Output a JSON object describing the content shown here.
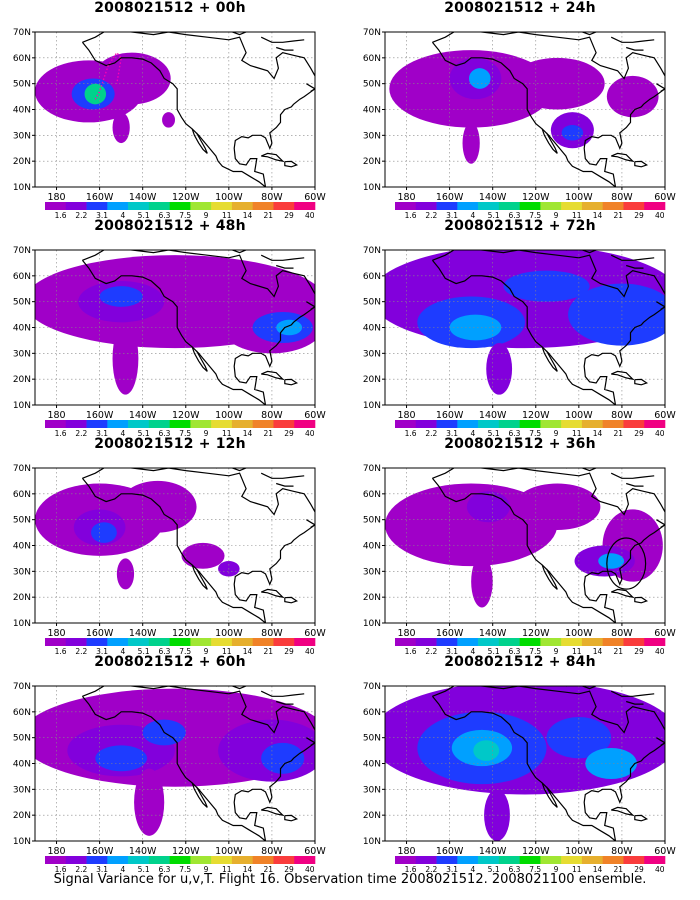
{
  "footer": "Signal Variance for u,v,T. Flight 16. Observation time 2008021512. 2008021100 ensemble.",
  "colors": {
    "levels": [
      "#a000c8",
      "#8200dc",
      "#1e3cff",
      "#00a0ff",
      "#00c8c8",
      "#00d28c",
      "#00dc00",
      "#a0e632",
      "#e6dc32",
      "#e6af2d",
      "#f08228",
      "#fa3c3c",
      "#f00082"
    ],
    "ocean": "#ffffff",
    "grid": "#888888",
    "coast": "#000000"
  },
  "chart_data": [
    {
      "type": "heatmap",
      "title": "2008021512 + 00h",
      "xlabel": "",
      "ylabel": "",
      "x_ticks": [
        "180",
        "160W",
        "140W",
        "120W",
        "100W",
        "80W",
        "60W"
      ],
      "y_ticks": [
        "10N",
        "20N",
        "30N",
        "40N",
        "50N",
        "60N",
        "70N"
      ],
      "xlim": [
        -190,
        -60
      ],
      "ylim": [
        10,
        70
      ],
      "colorbar": [
        "1.6",
        "2.2",
        "3.1",
        "4",
        "5.1",
        "6.3",
        "7.5",
        "9",
        "11",
        "14",
        "21",
        "29",
        "40"
      ],
      "fields": [
        {
          "lon": -165,
          "lat": 47,
          "rx": 25,
          "ry": 12,
          "level": 0
        },
        {
          "lon": -145,
          "lat": 52,
          "rx": 18,
          "ry": 10,
          "level": 0
        },
        {
          "lon": -163,
          "lat": 46,
          "rx": 10,
          "ry": 6,
          "level": 2
        },
        {
          "lon": -162,
          "lat": 46,
          "rx": 5,
          "ry": 4,
          "level": 5
        },
        {
          "lon": -150,
          "lat": 33,
          "rx": 4,
          "ry": 6,
          "level": 0
        },
        {
          "lon": -128,
          "lat": 36,
          "rx": 3,
          "ry": 3,
          "level": 0
        }
      ],
      "circle": null
    },
    {
      "type": "heatmap",
      "title": "2008021512 + 12h",
      "xlabel": "",
      "ylabel": "",
      "x_ticks": [
        "180",
        "160W",
        "140W",
        "120W",
        "100W",
        "80W",
        "60W"
      ],
      "y_ticks": [
        "10N",
        "20N",
        "30N",
        "40N",
        "50N",
        "60N",
        "70N"
      ],
      "xlim": [
        -190,
        -60
      ],
      "ylim": [
        10,
        70
      ],
      "colorbar": [
        "1.6",
        "2.2",
        "3.1",
        "4",
        "5.1",
        "6.3",
        "7.5",
        "9",
        "11",
        "14",
        "21",
        "29",
        "40"
      ],
      "fields": [
        {
          "lon": -160,
          "lat": 50,
          "rx": 30,
          "ry": 14,
          "level": 0
        },
        {
          "lon": -133,
          "lat": 55,
          "rx": 18,
          "ry": 10,
          "level": 0
        },
        {
          "lon": -160,
          "lat": 47,
          "rx": 12,
          "ry": 7,
          "level": 1
        },
        {
          "lon": -158,
          "lat": 45,
          "rx": 6,
          "ry": 4,
          "level": 2
        },
        {
          "lon": -148,
          "lat": 29,
          "rx": 4,
          "ry": 6,
          "level": 0
        },
        {
          "lon": -112,
          "lat": 36,
          "rx": 10,
          "ry": 5,
          "level": 0
        },
        {
          "lon": -100,
          "lat": 31,
          "rx": 5,
          "ry": 3,
          "level": 1
        }
      ],
      "circle": null
    },
    {
      "type": "heatmap",
      "title": "2008021512 + 24h",
      "xlabel": "",
      "ylabel": "",
      "x_ticks": [
        "180",
        "160W",
        "140W",
        "120W",
        "100W",
        "80W",
        "60W"
      ],
      "y_ticks": [
        "10N",
        "20N",
        "30N",
        "40N",
        "50N",
        "60N",
        "70N"
      ],
      "xlim": [
        -190,
        -60
      ],
      "ylim": [
        10,
        70
      ],
      "colorbar": [
        "1.6",
        "2.2",
        "3.1",
        "4",
        "5.1",
        "6.3",
        "7.5",
        "9",
        "11",
        "14",
        "21",
        "29",
        "40"
      ],
      "fields": [
        {
          "lon": -150,
          "lat": 48,
          "rx": 38,
          "ry": 15,
          "level": 0
        },
        {
          "lon": -110,
          "lat": 50,
          "rx": 22,
          "ry": 10,
          "level": 0
        },
        {
          "lon": -75,
          "lat": 45,
          "rx": 12,
          "ry": 8,
          "level": 0
        },
        {
          "lon": -148,
          "lat": 52,
          "rx": 12,
          "ry": 8,
          "level": 1
        },
        {
          "lon": -146,
          "lat": 52,
          "rx": 5,
          "ry": 4,
          "level": 3
        },
        {
          "lon": -150,
          "lat": 27,
          "rx": 4,
          "ry": 8,
          "level": 0
        },
        {
          "lon": -103,
          "lat": 32,
          "rx": 10,
          "ry": 7,
          "level": 1
        },
        {
          "lon": -103,
          "lat": 31,
          "rx": 5,
          "ry": 3,
          "level": 2
        }
      ],
      "circle": null
    },
    {
      "type": "heatmap",
      "title": "2008021512 + 36h",
      "xlabel": "",
      "ylabel": "",
      "x_ticks": [
        "180",
        "160W",
        "140W",
        "120W",
        "100W",
        "80W",
        "60W"
      ],
      "y_ticks": [
        "10N",
        "20N",
        "30N",
        "40N",
        "50N",
        "60N",
        "70N"
      ],
      "xlim": [
        -190,
        -60
      ],
      "ylim": [
        10,
        70
      ],
      "colorbar": [
        "1.6",
        "2.2",
        "3.1",
        "4",
        "5.1",
        "6.3",
        "7.5",
        "9",
        "11",
        "14",
        "21",
        "29",
        "40"
      ],
      "fields": [
        {
          "lon": -150,
          "lat": 48,
          "rx": 40,
          "ry": 16,
          "level": 0
        },
        {
          "lon": -110,
          "lat": 55,
          "rx": 20,
          "ry": 9,
          "level": 0
        },
        {
          "lon": -75,
          "lat": 40,
          "rx": 14,
          "ry": 14,
          "level": 0
        },
        {
          "lon": -142,
          "lat": 55,
          "rx": 10,
          "ry": 6,
          "level": 1
        },
        {
          "lon": -145,
          "lat": 26,
          "rx": 5,
          "ry": 10,
          "level": 0
        },
        {
          "lon": -88,
          "lat": 34,
          "rx": 14,
          "ry": 6,
          "level": 1
        },
        {
          "lon": -85,
          "lat": 34,
          "rx": 6,
          "ry": 3,
          "level": 3
        }
      ],
      "circle": {
        "lon": -78,
        "lat": 33,
        "r": 9
      }
    },
    {
      "type": "heatmap",
      "title": "2008021512 + 48h",
      "xlabel": "",
      "ylabel": "",
      "x_ticks": [
        "180",
        "160W",
        "140W",
        "120W",
        "100W",
        "80W",
        "60W"
      ],
      "y_ticks": [
        "10N",
        "20N",
        "30N",
        "40N",
        "50N",
        "60N",
        "70N"
      ],
      "xlim": [
        -190,
        -60
      ],
      "ylim": [
        10,
        70
      ],
      "colorbar": [
        "1.6",
        "2.2",
        "3.1",
        "4",
        "5.1",
        "6.3",
        "7.5",
        "9",
        "11",
        "14",
        "21",
        "29",
        "40"
      ],
      "fields": [
        {
          "lon": -125,
          "lat": 50,
          "rx": 70,
          "ry": 18,
          "level": 0
        },
        {
          "lon": -80,
          "lat": 42,
          "rx": 25,
          "ry": 12,
          "level": 0
        },
        {
          "lon": -150,
          "lat": 50,
          "rx": 20,
          "ry": 8,
          "level": 1
        },
        {
          "lon": -150,
          "lat": 52,
          "rx": 10,
          "ry": 4,
          "level": 2
        },
        {
          "lon": -75,
          "lat": 40,
          "rx": 14,
          "ry": 6,
          "level": 2
        },
        {
          "lon": -72,
          "lat": 40,
          "rx": 6,
          "ry": 3,
          "level": 3
        },
        {
          "lon": -148,
          "lat": 28,
          "rx": 6,
          "ry": 14,
          "level": 0
        }
      ],
      "circle": null
    },
    {
      "type": "heatmap",
      "title": "2008021512 + 60h",
      "xlabel": "",
      "ylabel": "",
      "x_ticks": [
        "180",
        "160W",
        "140W",
        "120W",
        "100W",
        "80W",
        "60W"
      ],
      "y_ticks": [
        "10N",
        "20N",
        "30N",
        "40N",
        "50N",
        "60N",
        "70N"
      ],
      "xlim": [
        -190,
        -60
      ],
      "ylim": [
        10,
        70
      ],
      "colorbar": [
        "1.6",
        "2.2",
        "3.1",
        "4",
        "5.1",
        "6.3",
        "7.5",
        "9",
        "11",
        "14",
        "21",
        "29",
        "40"
      ],
      "fields": [
        {
          "lon": -125,
          "lat": 50,
          "rx": 72,
          "ry": 19,
          "level": 0
        },
        {
          "lon": -150,
          "lat": 45,
          "rx": 25,
          "ry": 10,
          "level": 1
        },
        {
          "lon": -150,
          "lat": 42,
          "rx": 12,
          "ry": 5,
          "level": 2
        },
        {
          "lon": -80,
          "lat": 45,
          "rx": 25,
          "ry": 12,
          "level": 1
        },
        {
          "lon": -75,
          "lat": 42,
          "rx": 10,
          "ry": 6,
          "level": 2
        },
        {
          "lon": -130,
          "lat": 52,
          "rx": 10,
          "ry": 5,
          "level": 2
        },
        {
          "lon": -137,
          "lat": 25,
          "rx": 7,
          "ry": 13,
          "level": 0
        }
      ],
      "circle": null
    },
    {
      "type": "heatmap",
      "title": "2008021512 + 72h",
      "xlabel": "",
      "ylabel": "",
      "x_ticks": [
        "180",
        "160W",
        "140W",
        "120W",
        "100W",
        "80W",
        "60W"
      ],
      "y_ticks": [
        "10N",
        "20N",
        "30N",
        "40N",
        "50N",
        "60N",
        "70N"
      ],
      "xlim": [
        -190,
        -60
      ],
      "ylim": [
        10,
        70
      ],
      "colorbar": [
        "1.6",
        "2.2",
        "3.1",
        "4",
        "5.1",
        "6.3",
        "7.5",
        "9",
        "11",
        "14",
        "21",
        "29",
        "40"
      ],
      "fields": [
        {
          "lon": -125,
          "lat": 52,
          "rx": 72,
          "ry": 20,
          "level": 1
        },
        {
          "lon": -150,
          "lat": 42,
          "rx": 25,
          "ry": 10,
          "level": 2
        },
        {
          "lon": -148,
          "lat": 40,
          "rx": 12,
          "ry": 5,
          "level": 3
        },
        {
          "lon": -80,
          "lat": 45,
          "rx": 25,
          "ry": 12,
          "level": 2
        },
        {
          "lon": -115,
          "lat": 56,
          "rx": 20,
          "ry": 6,
          "level": 2
        },
        {
          "lon": -137,
          "lat": 24,
          "rx": 6,
          "ry": 10,
          "level": 1
        }
      ],
      "circle": null
    },
    {
      "type": "heatmap",
      "title": "2008021512 + 84h",
      "xlabel": "",
      "ylabel": "",
      "x_ticks": [
        "180",
        "160W",
        "140W",
        "120W",
        "100W",
        "80W",
        "60W"
      ],
      "y_ticks": [
        "10N",
        "20N",
        "30N",
        "40N",
        "50N",
        "60N",
        "70N"
      ],
      "xlim": [
        -190,
        -60
      ],
      "ylim": [
        10,
        70
      ],
      "colorbar": [
        "1.6",
        "2.2",
        "3.1",
        "4",
        "5.1",
        "6.3",
        "7.5",
        "9",
        "11",
        "14",
        "21",
        "29",
        "40"
      ],
      "fields": [
        {
          "lon": -125,
          "lat": 50,
          "rx": 72,
          "ry": 22,
          "level": 1
        },
        {
          "lon": -145,
          "lat": 46,
          "rx": 30,
          "ry": 14,
          "level": 2
        },
        {
          "lon": -145,
          "lat": 46,
          "rx": 14,
          "ry": 7,
          "level": 3
        },
        {
          "lon": -143,
          "lat": 45,
          "rx": 6,
          "ry": 4,
          "level": 4
        },
        {
          "lon": -100,
          "lat": 50,
          "rx": 15,
          "ry": 8,
          "level": 2
        },
        {
          "lon": -85,
          "lat": 40,
          "rx": 12,
          "ry": 6,
          "level": 3
        },
        {
          "lon": -138,
          "lat": 20,
          "rx": 6,
          "ry": 10,
          "level": 1
        }
      ],
      "circle": null
    }
  ]
}
